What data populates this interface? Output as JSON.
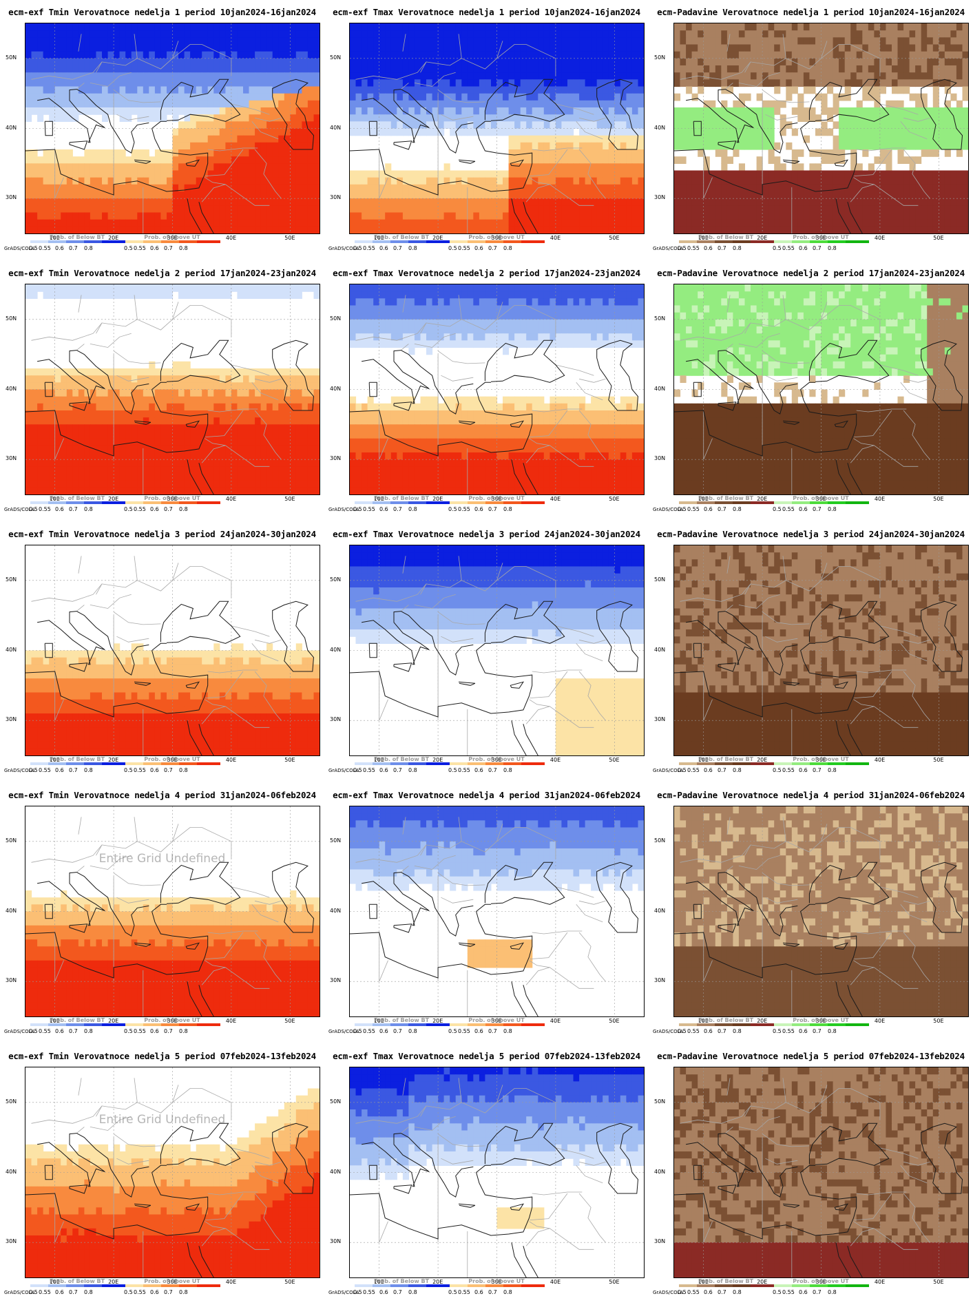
{
  "grid_labels": {
    "lat": [
      "50N",
      "40N",
      "30N"
    ],
    "lon": [
      "10E",
      "20E",
      "30E",
      "40E",
      "50E"
    ]
  },
  "credit": "GrADS/COLA",
  "undefined_note": "Entire Grid Undefined",
  "legend_ticks": [
    "0.5",
    "0.55",
    "0.6",
    "0.7",
    "0.8"
  ],
  "legends": {
    "below": "Prob. of Below BT",
    "above": "Prob. of Above UT"
  },
  "colors": {
    "blue": [
      "#d2e1fa",
      "#a3bff2",
      "#6e8eea",
      "#3b58e2",
      "#0b1fe0"
    ],
    "orange": [
      "#fce3a6",
      "#fbbf74",
      "#f88a3e",
      "#f3581e",
      "#ee2b0d"
    ],
    "brown_tan": [
      "#d7b98e",
      "#a98060",
      "#7b5033",
      "#6b3c20",
      "#8b2a25"
    ],
    "green": [
      "#c8f4b8",
      "#94ec80",
      "#4edc3c",
      "#24cc21",
      "#12b510"
    ]
  },
  "panels": [
    {
      "title": "ecm-exf Tmin Verovatnoce nedelja 1 period 10jan2024-16jan2024",
      "kind": "tmin",
      "week": 1
    },
    {
      "title": "ecm-exf Tmax Verovatnoce nedelja 1 period 10jan2024-16jan2024",
      "kind": "tmax",
      "week": 1
    },
    {
      "title": "ecm-Padavine Verovatnoce nedelja 1 period 10jan2024-16jan2024",
      "kind": "precip",
      "week": 1
    },
    {
      "title": "ecm-exf Tmin Verovatnoce nedelja 2 period 17jan2024-23jan2024",
      "kind": "tmin",
      "week": 2
    },
    {
      "title": "ecm-exf Tmax Verovatnoce nedelja 2 period 17jan2024-23jan2024",
      "kind": "tmax",
      "week": 2
    },
    {
      "title": "ecm-Padavine Verovatnoce nedelja 2 period 17jan2024-23jan2024",
      "kind": "precip",
      "week": 2
    },
    {
      "title": "ecm-exf Tmin Verovatnoce nedelja 3 period 24jan2024-30jan2024",
      "kind": "tmin",
      "week": 3
    },
    {
      "title": "ecm-exf Tmax Verovatnoce nedelja 3 period 24jan2024-30jan2024",
      "kind": "tmax",
      "week": 3
    },
    {
      "title": "ecm-Padavine Verovatnoce nedelja 3 period 24jan2024-30jan2024",
      "kind": "precip",
      "week": 3
    },
    {
      "title": "ecm-exf Tmin Verovatnoce nedelja 4 period 31jan2024-06feb2024",
      "kind": "tmin",
      "week": 4,
      "undefined": true
    },
    {
      "title": "ecm-exf Tmax Verovatnoce nedelja 4 period 31jan2024-06feb2024",
      "kind": "tmax",
      "week": 4
    },
    {
      "title": "ecm-Padavine Verovatnoce nedelja 4 period 31jan2024-06feb2024",
      "kind": "precip",
      "week": 4
    },
    {
      "title": "ecm-exf Tmin Verovatnoce nedelja 5 period 07feb2024-13feb2024",
      "kind": "tmin",
      "week": 5,
      "undefined": true
    },
    {
      "title": "ecm-exf Tmax Verovatnoce nedelja 5 period 07feb2024-13feb2024",
      "kind": "tmax",
      "week": 5
    },
    {
      "title": "ecm-Padavine Verovatnoce nedelja 5 period 07feb2024-13feb2024",
      "kind": "precip",
      "week": 5
    }
  ]
}
